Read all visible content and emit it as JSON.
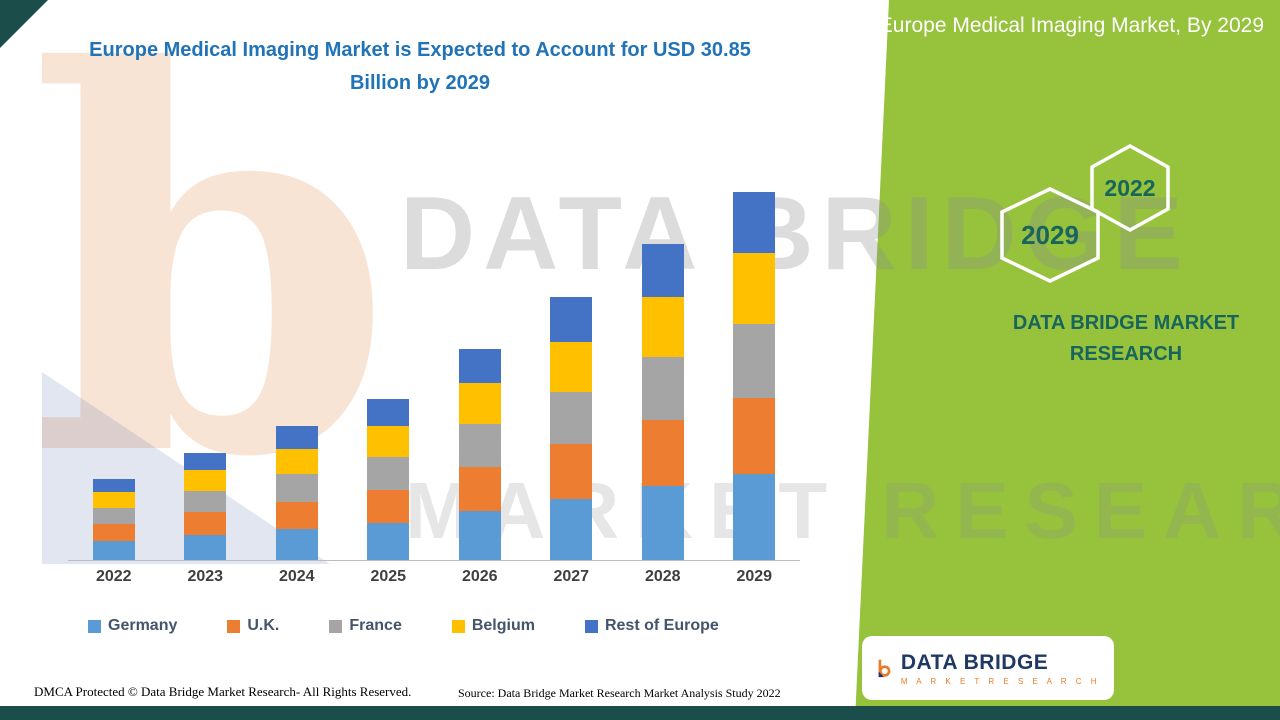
{
  "colors": {
    "panel_green": "#96C23C",
    "teal_dark": "#1B4D4B",
    "teal_text": "#17655C",
    "title_blue": "#2173B8",
    "legend_text": "#44546A"
  },
  "header": {
    "main_title": "Europe Medical Imaging Market is Expected to Account for USD 30.85 Billion by 2029",
    "side_title": "Europe Medical Imaging Market, By 2029"
  },
  "side_panel": {
    "hexagon_2029": "2029",
    "hexagon_2022": "2022",
    "brand_text": "DATA BRIDGE MARKET RESEARCH"
  },
  "watermark": {
    "logo_letter": "b",
    "line1": "DATA BRIDGE",
    "line2": "MARKET RESEARCH"
  },
  "chart_data": {
    "type": "bar",
    "stacked": true,
    "title": "Europe Medical Imaging Market is Expected to Account for USD 30.85 Billion by 2029",
    "categories": [
      "2022",
      "2023",
      "2024",
      "2025",
      "2026",
      "2027",
      "2028",
      "2029"
    ],
    "series": [
      {
        "name": "Germany",
        "color": "#5B9BD5",
        "values": [
          1.6,
          2.1,
          2.6,
          3.1,
          4.1,
          5.1,
          6.2,
          7.2
        ]
      },
      {
        "name": "U.K.",
        "color": "#ED7D31",
        "values": [
          1.4,
          1.9,
          2.3,
          2.8,
          3.7,
          4.6,
          5.5,
          6.4
        ]
      },
      {
        "name": "France",
        "color": "#A5A5A5",
        "values": [
          1.4,
          1.8,
          2.3,
          2.7,
          3.6,
          4.4,
          5.3,
          6.2
        ]
      },
      {
        "name": "Belgium",
        "color": "#FFC000",
        "values": [
          1.3,
          1.7,
          2.1,
          2.6,
          3.4,
          4.2,
          5.0,
          5.9
        ]
      },
      {
        "name": "Rest of Europe",
        "color": "#4472C4",
        "values": [
          1.1,
          1.5,
          1.9,
          2.3,
          2.9,
          3.7,
          4.5,
          5.15
        ]
      }
    ],
    "totals": [
      6.8,
      9.0,
      11.2,
      13.5,
      17.7,
      22.0,
      26.5,
      30.85
    ],
    "value_unit": "USD Billion",
    "ylim": [
      0,
      32
    ],
    "grid": false,
    "y_axis_visible": false,
    "legend_position": "bottom"
  },
  "logo": {
    "title": "DATA BRIDGE",
    "subtitle": "M A R K E T   R E S E A R C H"
  },
  "footer": {
    "dmca": "DMCA Protected © Data Bridge Market Research- All Rights Reserved.",
    "source": "Source: Data Bridge Market Research Market Analysis Study 2022"
  }
}
